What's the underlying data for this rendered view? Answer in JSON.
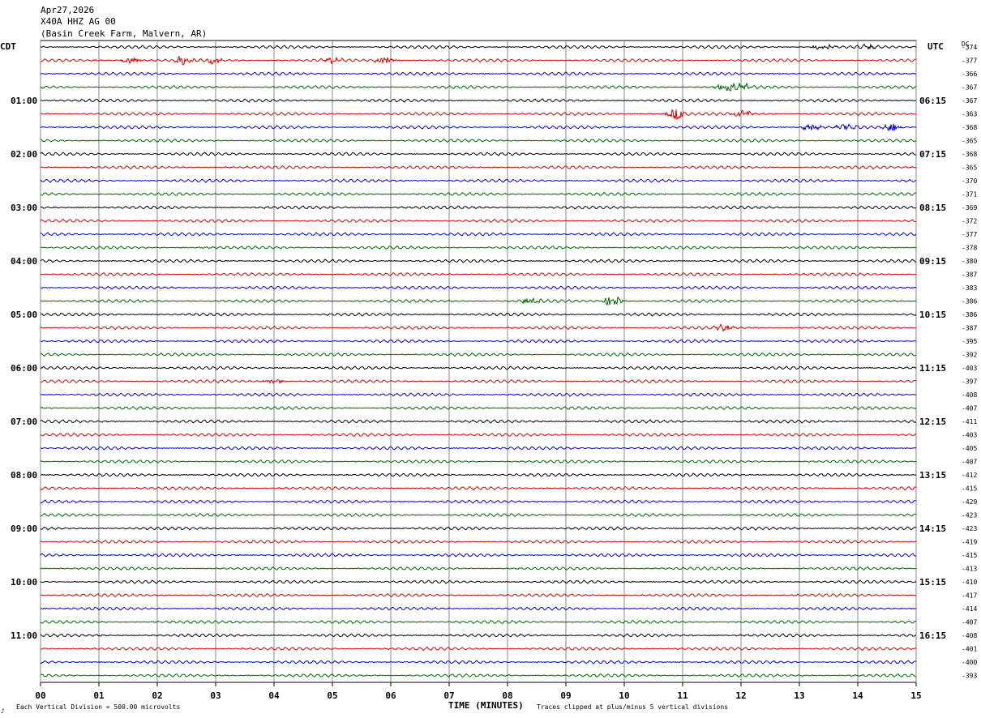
{
  "header": {
    "date": "Apr27,2026",
    "station": "X40A HHZ AG 00",
    "location": "(Basin Creek Farm, Malvern, AR)"
  },
  "axes": {
    "left_title": "CDT",
    "right_title": "UTC",
    "dc_title": "DC",
    "x_label": "TIME (MINUTES)",
    "vertical_division_note": "Each Vertical Division =  500.00 microvolts",
    "clip_note": "Traces clipped at plus/minus 5 vertical divisions",
    "corner_mark": "♪"
  },
  "chart_data": {
    "type": "line",
    "subtype": "helicorder",
    "x": [
      0,
      1,
      2,
      3,
      4,
      5,
      6,
      7,
      8,
      9,
      10,
      11,
      12,
      13,
      14,
      15
    ],
    "x_tick_labels": [
      "00",
      "01",
      "02",
      "03",
      "04",
      "05",
      "06",
      "07",
      "08",
      "09",
      "10",
      "11",
      "12",
      "13",
      "14",
      "15"
    ],
    "xlim": [
      0,
      15
    ],
    "xlabel": "TIME (MINUTES)",
    "grid": true,
    "trace_colors": [
      "#000000",
      "#d40000",
      "#0000cc",
      "#006600"
    ],
    "rows": 48,
    "left_labels": [
      {
        "row": 4,
        "text": "01:00"
      },
      {
        "row": 8,
        "text": "02:00"
      },
      {
        "row": 12,
        "text": "03:00"
      },
      {
        "row": 16,
        "text": "04:00"
      },
      {
        "row": 20,
        "text": "05:00"
      },
      {
        "row": 24,
        "text": "06:00"
      },
      {
        "row": 28,
        "text": "07:00"
      },
      {
        "row": 32,
        "text": "08:00"
      },
      {
        "row": 36,
        "text": "09:00"
      },
      {
        "row": 40,
        "text": "10:00"
      },
      {
        "row": 44,
        "text": "11:00"
      }
    ],
    "right_labels": [
      {
        "row": 4,
        "text": "06:15"
      },
      {
        "row": 8,
        "text": "07:15"
      },
      {
        "row": 12,
        "text": "08:15"
      },
      {
        "row": 16,
        "text": "09:15"
      },
      {
        "row": 20,
        "text": "10:15"
      },
      {
        "row": 24,
        "text": "11:15"
      },
      {
        "row": 28,
        "text": "12:15"
      },
      {
        "row": 32,
        "text": "13:15"
      },
      {
        "row": 36,
        "text": "14:15"
      },
      {
        "row": 40,
        "text": "15:15"
      },
      {
        "row": 44,
        "text": "16:15"
      }
    ],
    "dc_offsets": [
      "-374",
      "-377",
      "-366",
      "-367",
      "-367",
      "-363",
      "-368",
      "-365",
      "-368",
      "-365",
      "-370",
      "-371",
      "-369",
      "-372",
      "-377",
      "-378",
      "-380",
      "-387",
      "-383",
      "-386",
      "-386",
      "-387",
      "-395",
      "-392",
      "-403",
      "-397",
      "-408",
      "-407",
      "-411",
      "-403",
      "-405",
      "-407",
      "-412",
      "-415",
      "-429",
      "-423",
      "-423",
      "-419",
      "-415",
      "-413",
      "-410",
      "-417",
      "-414",
      "-407",
      "-408",
      "-401",
      "-400",
      "-393"
    ],
    "events": [
      {
        "row": 0,
        "minute": 13.4,
        "amp": 0.5
      },
      {
        "row": 0,
        "minute": 14.2,
        "amp": 0.4
      },
      {
        "row": 1,
        "minute": 1.55,
        "amp": 0.6
      },
      {
        "row": 1,
        "minute": 2.45,
        "amp": 0.6
      },
      {
        "row": 1,
        "minute": 2.95,
        "amp": 0.5
      },
      {
        "row": 1,
        "minute": 5.0,
        "amp": 0.5
      },
      {
        "row": 1,
        "minute": 5.9,
        "amp": 0.6
      },
      {
        "row": 3,
        "minute": 11.75,
        "amp": 0.7
      },
      {
        "row": 3,
        "minute": 12.05,
        "amp": 0.6
      },
      {
        "row": 5,
        "minute": 10.9,
        "amp": 0.9
      },
      {
        "row": 5,
        "minute": 12.0,
        "amp": 0.7
      },
      {
        "row": 6,
        "minute": 13.2,
        "amp": 0.6
      },
      {
        "row": 6,
        "minute": 13.8,
        "amp": 0.5
      },
      {
        "row": 6,
        "minute": 14.6,
        "amp": 0.6
      },
      {
        "row": 19,
        "minute": 8.4,
        "amp": 0.5
      },
      {
        "row": 19,
        "minute": 9.8,
        "amp": 0.9
      },
      {
        "row": 21,
        "minute": 11.7,
        "amp": 0.5
      },
      {
        "row": 25,
        "minute": 4.0,
        "amp": 0.4
      }
    ]
  }
}
